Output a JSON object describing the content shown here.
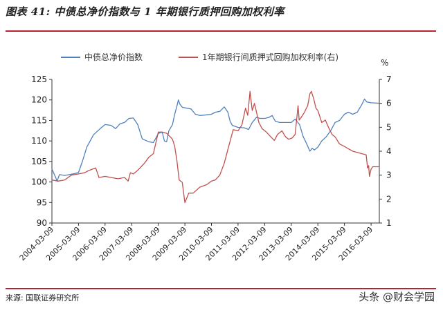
{
  "title": "图表 41: 中债总净价指数与 1 年期银行质押回购加权利率",
  "source": "来源: 国联证券研究所",
  "watermark": "头条 @财会学园",
  "colors": {
    "left_series": "#4f81bd",
    "right_series": "#c0504d",
    "rule": "#b8232f",
    "axis": "#333333"
  },
  "chart_data": {
    "type": "line",
    "xlabel": "",
    "ylabel_left": "",
    "ylabel_right": "%",
    "ylim_left": [
      90,
      125
    ],
    "ylim_right": [
      1,
      7
    ],
    "yticks_left": [
      90,
      95,
      100,
      105,
      110,
      115,
      120,
      125
    ],
    "yticks_right": [
      1,
      2,
      3,
      4,
      5,
      6,
      7
    ],
    "xlim": [
      "2004-03-09",
      "2016-06-30"
    ],
    "xticks": [
      "2004-03-09",
      "2005-03-09",
      "2006-03-09",
      "2007-03-09",
      "2008-03-09",
      "2009-03-09",
      "2010-03-09",
      "2011-03-09",
      "2012-03-09",
      "2013-03-09",
      "2014-03-09",
      "2015-03-09",
      "2016-03-09"
    ],
    "legend": "top",
    "series": [
      {
        "name": "中债总净价指数",
        "axis": "left",
        "points": [
          [
            "2004-03-09",
            103.2
          ],
          [
            "2004-04-20",
            101.5
          ],
          [
            "2004-05-20",
            100.2
          ],
          [
            "2004-06-20",
            101.8
          ],
          [
            "2004-09-01",
            101.6
          ],
          [
            "2005-01-01",
            102.0
          ],
          [
            "2005-03-09",
            102.3
          ],
          [
            "2005-05-01",
            105.0
          ],
          [
            "2005-07-01",
            108.5
          ],
          [
            "2005-10-01",
            111.5
          ],
          [
            "2006-01-01",
            113.0
          ],
          [
            "2006-03-09",
            114.0
          ],
          [
            "2006-06-01",
            113.8
          ],
          [
            "2006-08-01",
            113.0
          ],
          [
            "2006-10-01",
            114.2
          ],
          [
            "2006-12-01",
            114.5
          ],
          [
            "2007-02-01",
            115.5
          ],
          [
            "2007-04-01",
            115.6
          ],
          [
            "2007-06-01",
            114.0
          ],
          [
            "2007-08-01",
            110.5
          ],
          [
            "2007-11-01",
            109.8
          ],
          [
            "2008-01-01",
            109.6
          ],
          [
            "2008-03-09",
            111.8
          ],
          [
            "2008-05-01",
            112.2
          ],
          [
            "2008-06-01",
            110.0
          ],
          [
            "2008-07-01",
            109.8
          ],
          [
            "2008-08-01",
            112.5
          ],
          [
            "2008-09-20",
            114.0
          ],
          [
            "2008-10-20",
            116.5
          ],
          [
            "2008-11-20",
            118.5
          ],
          [
            "2008-12-10",
            120.0
          ],
          [
            "2008-12-30",
            119.0
          ],
          [
            "2009-02-01",
            118.2
          ],
          [
            "2009-04-01",
            118.0
          ],
          [
            "2009-06-01",
            117.8
          ],
          [
            "2009-08-01",
            116.5
          ],
          [
            "2009-10-01",
            116.2
          ],
          [
            "2009-12-01",
            116.3
          ],
          [
            "2010-03-09",
            116.5
          ],
          [
            "2010-05-01",
            117.0
          ],
          [
            "2010-07-01",
            117.2
          ],
          [
            "2010-09-01",
            118.3
          ],
          [
            "2010-10-20",
            117.0
          ],
          [
            "2010-11-20",
            114.8
          ],
          [
            "2010-12-20",
            113.8
          ],
          [
            "2011-03-09",
            113.3
          ],
          [
            "2011-06-01",
            113.2
          ],
          [
            "2011-08-01",
            112.8
          ],
          [
            "2011-09-20",
            114.5
          ],
          [
            "2011-11-20",
            115.8
          ],
          [
            "2012-01-01",
            115.5
          ],
          [
            "2012-03-09",
            115.5
          ],
          [
            "2012-05-01",
            115.7
          ],
          [
            "2012-06-20",
            116.2
          ],
          [
            "2012-08-01",
            114.8
          ],
          [
            "2012-10-01",
            114.5
          ],
          [
            "2012-12-01",
            114.5
          ],
          [
            "2013-03-09",
            114.5
          ],
          [
            "2013-05-01",
            115.3
          ],
          [
            "2013-07-01",
            114.0
          ],
          [
            "2013-08-20",
            111.0
          ],
          [
            "2013-10-01",
            109.5
          ],
          [
            "2013-11-20",
            107.5
          ],
          [
            "2013-12-20",
            108.2
          ],
          [
            "2014-01-20",
            107.8
          ],
          [
            "2014-03-09",
            108.5
          ],
          [
            "2014-05-01",
            110.0
          ],
          [
            "2014-07-01",
            111.0
          ],
          [
            "2014-09-01",
            112.5
          ],
          [
            "2014-11-01",
            114.5
          ],
          [
            "2015-01-01",
            115.0
          ],
          [
            "2015-03-09",
            116.5
          ],
          [
            "2015-05-01",
            117.0
          ],
          [
            "2015-07-01",
            116.5
          ],
          [
            "2015-09-01",
            117.0
          ],
          [
            "2015-11-01",
            118.8
          ],
          [
            "2015-12-10",
            120.2
          ],
          [
            "2016-01-10",
            119.5
          ],
          [
            "2016-03-09",
            119.3
          ],
          [
            "2016-06-30",
            119.2
          ]
        ]
      },
      {
        "name": "1年期银行间质押式回购加权利率(右)",
        "axis": "right",
        "points": [
          [
            "2004-03-09",
            2.8
          ],
          [
            "2004-06-01",
            2.75
          ],
          [
            "2004-09-01",
            2.8
          ],
          [
            "2004-12-01",
            3.0
          ],
          [
            "2005-03-09",
            3.05
          ],
          [
            "2005-06-01",
            3.1
          ],
          [
            "2005-08-01",
            3.2
          ],
          [
            "2005-11-01",
            3.3
          ],
          [
            "2005-12-15",
            2.9
          ],
          [
            "2006-03-09",
            2.95
          ],
          [
            "2006-06-01",
            2.9
          ],
          [
            "2006-09-01",
            2.85
          ],
          [
            "2006-12-01",
            2.9
          ],
          [
            "2007-01-20",
            2.75
          ],
          [
            "2007-02-20",
            3.1
          ],
          [
            "2007-04-01",
            3.05
          ],
          [
            "2007-06-01",
            3.2
          ],
          [
            "2007-09-01",
            3.5
          ],
          [
            "2007-11-01",
            3.75
          ],
          [
            "2008-01-01",
            3.9
          ],
          [
            "2008-03-09",
            4.8
          ],
          [
            "2008-05-01",
            4.8
          ],
          [
            "2008-07-01",
            4.75
          ],
          [
            "2008-08-20",
            4.6
          ],
          [
            "2008-09-20",
            4.5
          ],
          [
            "2008-10-20",
            4.2
          ],
          [
            "2008-11-20",
            3.6
          ],
          [
            "2008-12-20",
            2.8
          ],
          [
            "2009-02-01",
            2.7
          ],
          [
            "2009-03-09",
            1.85
          ],
          [
            "2009-05-01",
            2.25
          ],
          [
            "2009-07-01",
            2.25
          ],
          [
            "2009-10-01",
            2.5
          ],
          [
            "2010-01-01",
            2.6
          ],
          [
            "2010-03-09",
            2.75
          ],
          [
            "2010-05-01",
            2.8
          ],
          [
            "2010-07-01",
            3.0
          ],
          [
            "2010-09-01",
            3.5
          ],
          [
            "2010-11-01",
            4.2
          ],
          [
            "2011-01-01",
            4.9
          ],
          [
            "2011-03-09",
            4.85
          ],
          [
            "2011-05-01",
            5.1
          ],
          [
            "2011-06-20",
            5.8
          ],
          [
            "2011-07-20",
            5.5
          ],
          [
            "2011-08-20",
            6.5
          ],
          [
            "2011-09-20",
            5.7
          ],
          [
            "2011-10-20",
            6.0
          ],
          [
            "2011-11-20",
            5.6
          ],
          [
            "2011-12-20",
            5.2
          ],
          [
            "2012-02-01",
            4.95
          ],
          [
            "2012-04-01",
            4.8
          ],
          [
            "2012-06-01",
            4.6
          ],
          [
            "2012-07-20",
            4.45
          ],
          [
            "2012-09-01",
            4.7
          ],
          [
            "2012-11-01",
            4.85
          ],
          [
            "2012-12-20",
            4.6
          ],
          [
            "2013-02-01",
            4.5
          ],
          [
            "2013-03-20",
            4.55
          ],
          [
            "2013-05-01",
            4.7
          ],
          [
            "2013-06-10",
            5.9
          ],
          [
            "2013-06-25",
            5.3
          ],
          [
            "2013-07-20",
            5.4
          ],
          [
            "2013-09-01",
            5.6
          ],
          [
            "2013-10-20",
            5.9
          ],
          [
            "2013-11-20",
            6.4
          ],
          [
            "2013-12-10",
            6.5
          ],
          [
            "2014-01-10",
            6.2
          ],
          [
            "2014-02-10",
            5.8
          ],
          [
            "2014-03-09",
            5.7
          ],
          [
            "2014-05-01",
            5.2
          ],
          [
            "2014-06-20",
            5.3
          ],
          [
            "2014-08-01",
            5.0
          ],
          [
            "2014-09-20",
            4.7
          ],
          [
            "2014-11-01",
            4.6
          ],
          [
            "2015-01-01",
            4.3
          ],
          [
            "2015-03-09",
            4.2
          ],
          [
            "2015-05-01",
            4.1
          ],
          [
            "2015-07-01",
            4.0
          ],
          [
            "2015-09-01",
            3.95
          ],
          [
            "2015-11-01",
            3.9
          ],
          [
            "2016-01-01",
            3.85
          ],
          [
            "2016-01-20",
            3.3
          ],
          [
            "2016-02-05",
            3.4
          ],
          [
            "2016-02-15",
            2.95
          ],
          [
            "2016-03-09",
            3.25
          ],
          [
            "2016-04-01",
            3.35
          ],
          [
            "2016-06-30",
            3.35
          ]
        ]
      }
    ]
  }
}
